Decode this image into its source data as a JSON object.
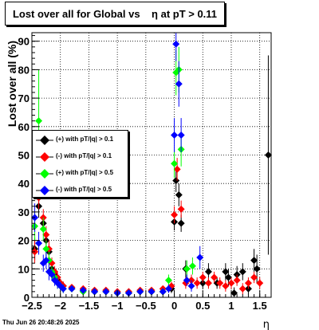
{
  "title": "Lost over all for Global vs    η at pT > 0.11",
  "footer_timestamp": "Thu Jun 26 20:48:26 2025",
  "chart_data": {
    "type": "scatter",
    "title": "Lost over all for Global vs    η at pT > 0.11",
    "xlabel": "η",
    "ylabel": "Lost over all (%)",
    "xlim": [
      -2.5,
      1.7
    ],
    "ylim": [
      0,
      93
    ],
    "x_ticks": [
      "−2.5",
      "−2",
      "−1.5",
      "−1",
      "−0.5",
      "0",
      "0.5",
      "1",
      "1.5"
    ],
    "y_ticks": [
      "0",
      "10",
      "20",
      "30",
      "40",
      "50",
      "60",
      "70",
      "80",
      "90"
    ],
    "grid": true,
    "legend_placement": "left",
    "series": [
      {
        "name": "(+) with pT/|q| > 0.1",
        "color": "#000000",
        "marker": "diamond",
        "points": [
          [
            -2.45,
            17,
            4
          ],
          [
            -2.38,
            32,
            4
          ],
          [
            -2.3,
            26,
            3
          ],
          [
            -2.25,
            20,
            3
          ],
          [
            -2.2,
            16,
            3
          ],
          [
            -2.15,
            10,
            2
          ],
          [
            -2.1,
            8,
            2
          ],
          [
            -2.05,
            6,
            2
          ],
          [
            -2.0,
            5,
            1.5
          ],
          [
            -1.95,
            4,
            1.5
          ],
          [
            -1.8,
            3,
            1
          ],
          [
            -1.6,
            2.5,
            1
          ],
          [
            -1.4,
            2,
            1
          ],
          [
            -1.2,
            2,
            1
          ],
          [
            -1.0,
            1.5,
            1
          ],
          [
            -0.8,
            1.5,
            1
          ],
          [
            -0.6,
            2,
            1
          ],
          [
            -0.4,
            2,
            1
          ],
          [
            -0.2,
            2,
            1
          ],
          [
            -0.05,
            3,
            1.5
          ],
          [
            0.0,
            26.5,
            3
          ],
          [
            0.03,
            41,
            4
          ],
          [
            0.08,
            36,
            4
          ],
          [
            0.12,
            26,
            3
          ],
          [
            0.2,
            10,
            3
          ],
          [
            0.3,
            6,
            2
          ],
          [
            0.5,
            5,
            2
          ],
          [
            0.6,
            9,
            3
          ],
          [
            0.75,
            5,
            2
          ],
          [
            0.9,
            9,
            3
          ],
          [
            0.95,
            7,
            3
          ],
          [
            1.05,
            1.5,
            2
          ],
          [
            1.1,
            8,
            3
          ],
          [
            1.2,
            9,
            3
          ],
          [
            1.3,
            3,
            2
          ],
          [
            1.4,
            13,
            4
          ],
          [
            1.45,
            10,
            5
          ],
          [
            1.65,
            50,
            35
          ]
        ]
      },
      {
        "name": "(-) with pT/|q| > 0.1",
        "color": "#ff0000",
        "marker": "diamond",
        "points": [
          [
            -2.45,
            16,
            4
          ],
          [
            -2.38,
            35,
            4
          ],
          [
            -2.3,
            28,
            3
          ],
          [
            -2.25,
            22,
            3
          ],
          [
            -2.2,
            17,
            3
          ],
          [
            -2.15,
            12,
            2
          ],
          [
            -2.1,
            9,
            2
          ],
          [
            -2.05,
            7,
            2
          ],
          [
            -2.0,
            5,
            1.5
          ],
          [
            -1.95,
            4,
            1.5
          ],
          [
            -1.8,
            3.5,
            1
          ],
          [
            -1.6,
            3,
            1
          ],
          [
            -1.4,
            2.5,
            1
          ],
          [
            -1.2,
            2.5,
            1
          ],
          [
            -1.0,
            2,
            1
          ],
          [
            -0.8,
            2,
            1
          ],
          [
            -0.6,
            2.5,
            1
          ],
          [
            -0.4,
            2.5,
            1
          ],
          [
            -0.2,
            3,
            1
          ],
          [
            -0.05,
            4,
            1.5
          ],
          [
            0.0,
            29,
            3
          ],
          [
            0.05,
            45,
            4
          ],
          [
            0.12,
            31,
            3
          ],
          [
            0.2,
            5,
            2
          ],
          [
            0.3,
            6,
            2
          ],
          [
            0.4,
            5,
            2
          ],
          [
            0.5,
            7,
            2
          ],
          [
            0.6,
            5,
            2
          ],
          [
            0.7,
            7,
            2
          ],
          [
            0.8,
            5,
            2
          ],
          [
            0.9,
            4,
            2
          ],
          [
            1.0,
            5,
            2
          ],
          [
            1.1,
            6,
            2
          ],
          [
            1.2,
            3,
            2
          ],
          [
            1.3,
            5,
            2
          ],
          [
            1.4,
            7,
            2
          ],
          [
            1.5,
            5,
            2
          ]
        ]
      },
      {
        "name": "(+) with pT/|q| > 0.5",
        "color": "#00ff00",
        "marker": "diamond",
        "points": [
          [
            -2.45,
            25,
            5
          ],
          [
            -2.38,
            62,
            18
          ],
          [
            -2.3,
            24,
            4
          ],
          [
            -2.25,
            17,
            3
          ],
          [
            -2.2,
            13,
            3
          ],
          [
            -2.15,
            9,
            2
          ],
          [
            -2.1,
            7,
            2
          ],
          [
            -2.05,
            5,
            2
          ],
          [
            -2.0,
            4,
            1.5
          ],
          [
            -1.95,
            3,
            1.5
          ],
          [
            -1.8,
            3,
            1
          ],
          [
            -1.6,
            2,
            1
          ],
          [
            -1.4,
            2,
            1
          ],
          [
            -1.2,
            2,
            1
          ],
          [
            -1.0,
            1.5,
            1
          ],
          [
            -0.8,
            1.5,
            1
          ],
          [
            -0.6,
            2,
            1
          ],
          [
            -0.4,
            2,
            1
          ],
          [
            -0.2,
            2,
            1
          ],
          [
            -0.1,
            6,
            2
          ],
          [
            0.0,
            47,
            5
          ],
          [
            0.03,
            79,
            8
          ],
          [
            0.08,
            80,
            8
          ],
          [
            0.12,
            52,
            6
          ],
          [
            0.22,
            10,
            3
          ],
          [
            0.32,
            11,
            3
          ]
        ]
      },
      {
        "name": "(-) with pT/|q| > 0.5",
        "color": "#0000ff",
        "marker": "diamond",
        "points": [
          [
            -2.45,
            28,
            5
          ],
          [
            -2.38,
            19,
            4
          ],
          [
            -2.3,
            12,
            3
          ],
          [
            -2.25,
            13,
            3
          ],
          [
            -2.2,
            9,
            3
          ],
          [
            -2.15,
            8,
            2
          ],
          [
            -2.1,
            6,
            2
          ],
          [
            -2.05,
            5,
            2
          ],
          [
            -2.0,
            4,
            1.5
          ],
          [
            -1.95,
            3,
            1.5
          ],
          [
            -1.8,
            3,
            1
          ],
          [
            -1.6,
            2.5,
            1
          ],
          [
            -1.4,
            2,
            1
          ],
          [
            -1.2,
            2,
            1
          ],
          [
            -1.0,
            1.5,
            1
          ],
          [
            -0.8,
            1.5,
            1
          ],
          [
            -0.6,
            2,
            1
          ],
          [
            -0.4,
            2,
            1
          ],
          [
            -0.2,
            2,
            1
          ],
          [
            -0.1,
            3,
            1.5
          ],
          [
            0.0,
            57,
            6
          ],
          [
            0.03,
            89,
            6
          ],
          [
            0.08,
            75,
            8
          ],
          [
            0.12,
            57,
            6
          ],
          [
            0.22,
            6,
            2
          ],
          [
            0.3,
            4,
            2
          ],
          [
            0.45,
            14,
            4
          ]
        ]
      }
    ]
  }
}
